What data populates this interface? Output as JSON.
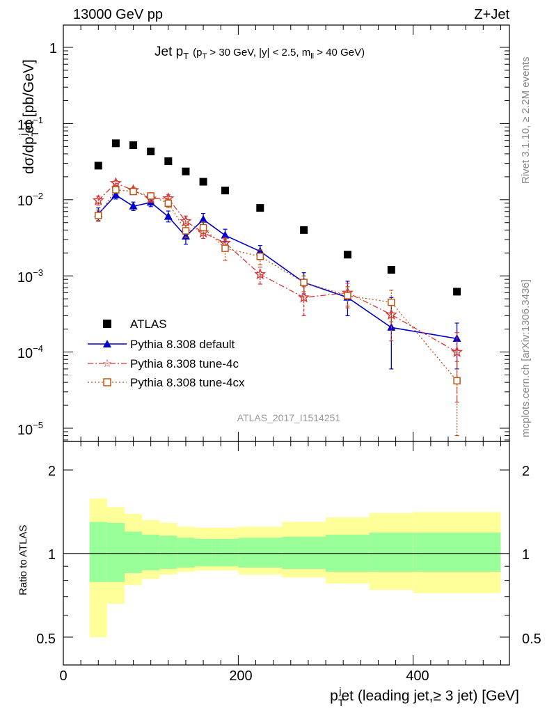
{
  "header": {
    "left": "13000 GeV pp",
    "right": "Z+Jet"
  },
  "side": {
    "top": "Rivet 3.1.10, ≥ 2.2M events",
    "bottom": "mcplots.cern.ch [arXiv:1306.3436]"
  },
  "analysis_id": "ATLAS_2017_I1514251",
  "title": {
    "main": "Jet p",
    "main_sub": "T",
    "cut_a": "(p",
    "cut_a_sub": "T",
    "cut_b": " > 30 GeV, |y| < 2.5, m",
    "cut_b_sub": "ll",
    "cut_c": " > 40 GeV)"
  },
  "axes": {
    "ylabel_top": "dσ/dp",
    "ylabel_sub": "T",
    "ylabel_sup": "j",
    "ylabel_tail": "et [pb/GeV]",
    "ylabel_ratio": "Ratio to ATLAS",
    "xlabel_head": "p",
    "xlabel_sub": "T",
    "xlabel_sup": "j",
    "xlabel_tail": "et (leading jet,≥ 3 jet) [GeV]",
    "top_ticks": [
      "1",
      "10",
      "10",
      "10",
      "10",
      "10"
    ],
    "top_exps": [
      "",
      "−1",
      "−2",
      "−3",
      "−4",
      "−5"
    ],
    "ratio_ticks": [
      "2",
      "1",
      "0.5"
    ],
    "x_ticks": [
      "0",
      "200",
      "400"
    ]
  },
  "chart_data": {
    "type": "scatter",
    "xlim": [
      0,
      510
    ],
    "ylim": [
      5e-06,
      3
    ],
    "yscale": "log",
    "ratio_ylim": [
      0.4,
      2.5
    ],
    "ratio_yscale": "log",
    "x": [
      40,
      60,
      80,
      100,
      120,
      140,
      160,
      185,
      225,
      275,
      325,
      375,
      450
    ],
    "x_bin_edges": [
      30,
      50,
      70,
      90,
      110,
      130,
      150,
      170,
      200,
      250,
      300,
      350,
      400,
      500
    ],
    "legend": {
      "placement": "lower-left",
      "entries": [
        "ATLAS",
        "Pythia 8.308 default",
        "Pythia 8.308 tune-4c",
        "Pythia 8.308 tune-4cx"
      ]
    },
    "series": [
      {
        "name": "ATLAS",
        "color": "#000000",
        "marker": "square",
        "values": [
          0.028,
          0.055,
          0.052,
          0.043,
          0.032,
          0.0235,
          0.0172,
          0.0132,
          0.0078,
          0.004,
          0.0019,
          0.0012,
          0.00062
        ]
      },
      {
        "name": "Pythia 8.308 default",
        "color": "#0000cc",
        "marker": "triangle",
        "line": "solid",
        "values": [
          0.0065,
          0.0115,
          0.0082,
          0.0092,
          0.006,
          0.0033,
          0.0055,
          0.0034,
          0.0021,
          0.00082,
          0.00052,
          0.00021,
          0.00015
        ],
        "err_low": [
          0.0053,
          0.0102,
          0.0072,
          0.0081,
          0.0051,
          0.0026,
          0.0046,
          0.0028,
          0.00175,
          0.00058,
          0.0003,
          6e-05,
          6e-05
        ],
        "err_high": [
          0.0078,
          0.0129,
          0.0093,
          0.0103,
          0.0071,
          0.0041,
          0.0066,
          0.0041,
          0.0025,
          0.0011,
          0.00085,
          0.00052,
          0.00024
        ]
      },
      {
        "name": "Pythia 8.308 tune-4c",
        "color": "#dd3333",
        "marker": "star",
        "line": "dashdot",
        "values": [
          0.0098,
          0.0165,
          0.0133,
          0.0103,
          0.0104,
          0.0052,
          0.0037,
          0.0027,
          0.00105,
          0.00052,
          0.0006,
          0.00031,
          0.0001
        ],
        "err_low": [
          0.0085,
          0.0153,
          0.0122,
          0.0093,
          0.0092,
          0.0043,
          0.0031,
          0.0022,
          0.00078,
          0.0003,
          0.0004,
          0.00014,
          2.2e-05
        ],
        "err_high": [
          0.0111,
          0.0178,
          0.0145,
          0.0114,
          0.0116,
          0.0061,
          0.0044,
          0.0032,
          0.0013,
          0.00072,
          0.0008,
          0.00047,
          0.00018
        ]
      },
      {
        "name": "Pythia 8.308 tune-4cx",
        "color": "#bb5511",
        "marker": "open-square",
        "line": "dotted",
        "values": [
          0.0062,
          0.0135,
          0.0128,
          0.0112,
          0.009,
          0.0039,
          0.0043,
          0.0023,
          0.0018,
          0.00082,
          0.00055,
          0.00045,
          4.2e-05
        ],
        "err_low": [
          0.0052,
          0.0123,
          0.0117,
          0.0101,
          0.0079,
          0.0032,
          0.0036,
          0.0016,
          0.0014,
          0.00062,
          0.00038,
          0.00025,
          8e-06
        ],
        "err_high": [
          0.0073,
          0.0147,
          0.0139,
          0.0123,
          0.0101,
          0.0046,
          0.0051,
          0.003,
          0.0022,
          0.001,
          0.00072,
          0.00065,
          7.5e-05
        ]
      }
    ],
    "ratio_bands": {
      "inner_color": "#99ff99",
      "outer_color": "#ffff99",
      "inner_low": [
        0.79,
        0.79,
        0.85,
        0.87,
        0.88,
        0.89,
        0.9,
        0.9,
        0.89,
        0.88,
        0.86,
        0.86,
        0.86
      ],
      "inner_high": [
        1.3,
        1.29,
        1.2,
        1.17,
        1.16,
        1.14,
        1.13,
        1.13,
        1.14,
        1.15,
        1.17,
        1.19,
        1.19
      ],
      "outer_low": [
        0.5,
        0.66,
        0.77,
        0.81,
        0.84,
        0.86,
        0.87,
        0.87,
        0.84,
        0.82,
        0.78,
        0.74,
        0.72
      ],
      "outer_high": [
        1.58,
        1.47,
        1.39,
        1.32,
        1.29,
        1.25,
        1.24,
        1.24,
        1.25,
        1.3,
        1.35,
        1.4,
        1.41
      ]
    }
  }
}
